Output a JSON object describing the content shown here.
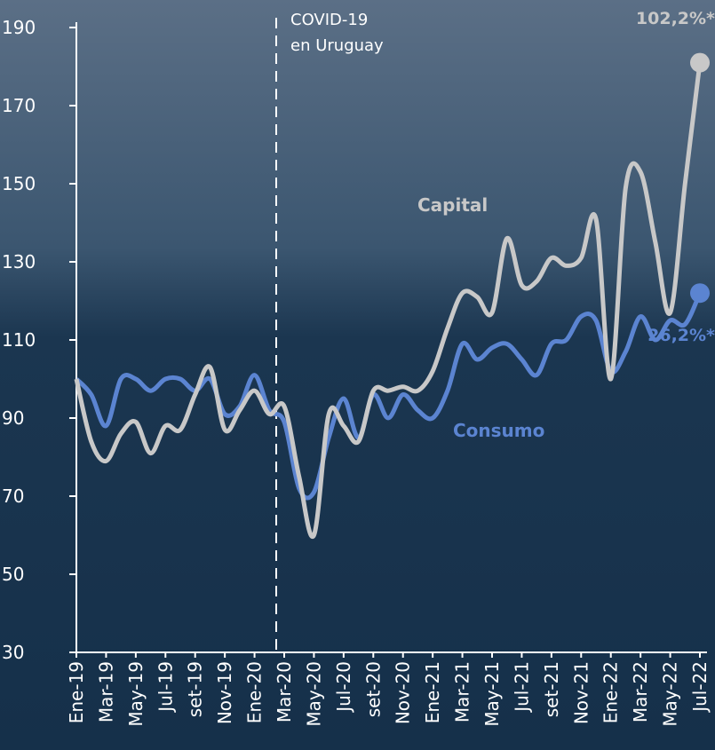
{
  "chart_data": {
    "type": "line",
    "categories": [
      "Ene-19",
      null,
      "Mar-19",
      null,
      "May-19",
      null,
      "Jul-19",
      null,
      "set-19",
      null,
      "Nov-19",
      null,
      "Ene-20",
      null,
      "Mar-20",
      null,
      "May-20",
      null,
      "Jul-20",
      null,
      "set-20",
      null,
      "Nov-20",
      null,
      "Ene-21",
      null,
      "Mar-21",
      null,
      "May-21",
      null,
      "Jul-21",
      null,
      "set-21",
      null,
      "Nov-21",
      null,
      "Ene-22",
      null,
      "Mar-22",
      null,
      "May-22",
      null,
      "Jul-22"
    ],
    "series": [
      {
        "name": "Capital",
        "color": "#c8c8c8",
        "end_label": "102,2%*",
        "values": [
          100,
          84,
          79,
          86,
          89,
          81,
          88,
          87,
          96,
          103,
          87,
          92,
          97,
          91,
          93,
          75,
          60,
          91,
          88,
          84,
          97,
          97,
          98,
          97,
          102,
          113,
          122,
          121,
          117,
          136,
          124,
          125,
          131,
          129,
          131,
          141,
          100,
          149,
          153,
          135,
          117,
          150,
          181
        ]
      },
      {
        "name": "Consumo",
        "color": "#5b84d1",
        "end_label": "26,2%*",
        "values": [
          100,
          96,
          88,
          100,
          100,
          97,
          100,
          100,
          97,
          100,
          91,
          93,
          101,
          92,
          89,
          72,
          71,
          85,
          95,
          85,
          96,
          90,
          96,
          92,
          90,
          97,
          109,
          105,
          108,
          109,
          105,
          101,
          109,
          110,
          116,
          115,
          102,
          107,
          116,
          110,
          115,
          114,
          122
        ]
      }
    ],
    "annotation": [
      "COVID-19",
      "en Uruguay"
    ],
    "ylim": [
      30,
      190
    ],
    "yticks": [
      30,
      50,
      70,
      90,
      110,
      130,
      150,
      170,
      190
    ]
  }
}
